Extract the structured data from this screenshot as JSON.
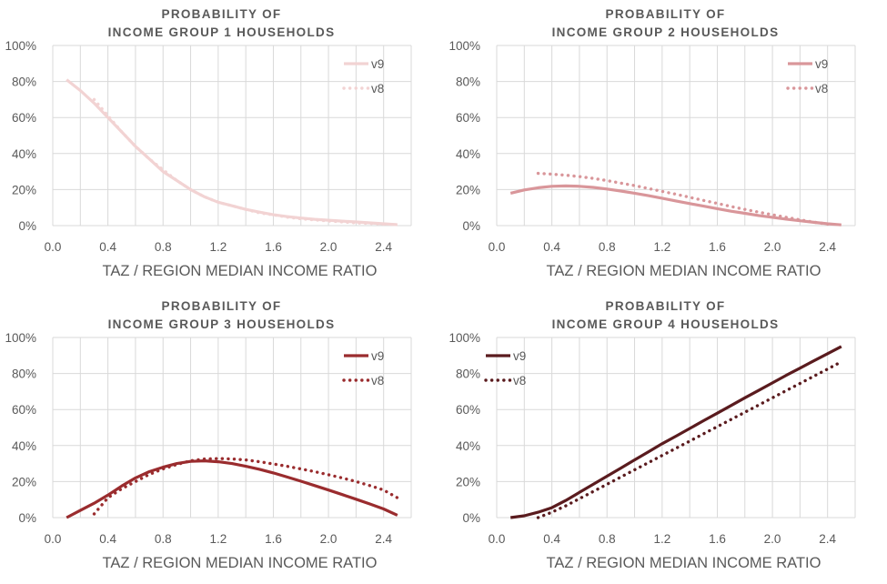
{
  "chart_data": [
    {
      "type": "line",
      "title": [
        "PROBABILITY OF",
        "INCOME GROUP 1 HOUSEHOLDS"
      ],
      "xlabel": "TAZ / REGION MEDIAN INCOME RATIO",
      "ylabel": "",
      "xlim": [
        0,
        2.6
      ],
      "ylim": [
        0,
        100
      ],
      "xticks": [
        "0.0",
        "0.4",
        "0.8",
        "1.2",
        "1.6",
        "2.0",
        "2.4"
      ],
      "yticks": [
        "0%",
        "20%",
        "40%",
        "60%",
        "80%",
        "100%"
      ],
      "grid": true,
      "legend": "top-right",
      "color": "#f2d3d3",
      "series": [
        {
          "name": "v9",
          "style": "solid",
          "x": [
            0.1,
            0.2,
            0.3,
            0.4,
            0.5,
            0.6,
            0.7,
            0.8,
            0.9,
            1.0,
            1.1,
            1.2,
            1.3,
            1.4,
            1.5,
            1.6,
            1.7,
            1.8,
            1.9,
            2.0,
            2.1,
            2.2,
            2.3,
            2.4,
            2.5
          ],
          "y": [
            81,
            75,
            68,
            60,
            52,
            44,
            37,
            30,
            25,
            20,
            16,
            13,
            11,
            9,
            7.5,
            6,
            5,
            4.2,
            3.5,
            3,
            2.5,
            2,
            1.5,
            1,
            0.5
          ]
        },
        {
          "name": "v8",
          "style": "dotted",
          "x": [
            0.3,
            0.4,
            0.5,
            0.6,
            0.7,
            0.8,
            0.9,
            1.0,
            1.1,
            1.2,
            1.3,
            1.4,
            1.5,
            1.6,
            1.7,
            1.8,
            1.9,
            2.0,
            2.1,
            2.2,
            2.3,
            2.4
          ],
          "y": [
            70,
            61,
            52,
            44,
            37,
            31,
            25,
            20,
            16,
            13,
            11,
            9,
            7,
            6,
            4.7,
            3.8,
            3.2,
            2.6,
            2,
            1.5,
            1.2,
            0.8
          ]
        }
      ]
    },
    {
      "type": "line",
      "title": [
        "PROBABILITY OF",
        "INCOME GROUP 2 HOUSEHOLDS"
      ],
      "xlabel": "TAZ / REGION MEDIAN INCOME RATIO",
      "ylabel": "",
      "xlim": [
        0,
        2.6
      ],
      "ylim": [
        0,
        100
      ],
      "xticks": [
        "0.0",
        "0.4",
        "0.8",
        "1.2",
        "1.6",
        "2.0",
        "2.4"
      ],
      "yticks": [
        "0%",
        "20%",
        "40%",
        "60%",
        "80%",
        "100%"
      ],
      "grid": true,
      "legend": "top-right",
      "color": "#d9969a",
      "series": [
        {
          "name": "v9",
          "style": "solid",
          "x": [
            0.1,
            0.2,
            0.3,
            0.4,
            0.5,
            0.6,
            0.7,
            0.8,
            0.9,
            1.0,
            1.1,
            1.2,
            1.3,
            1.4,
            1.5,
            1.6,
            1.7,
            1.8,
            1.9,
            2.0,
            2.1,
            2.2,
            2.3,
            2.4,
            2.5
          ],
          "y": [
            18,
            19.8,
            21,
            21.8,
            22,
            21.8,
            21.2,
            20.3,
            19.2,
            18,
            16.6,
            15.2,
            13.7,
            12.2,
            10.8,
            9.4,
            8,
            6.8,
            5.6,
            4.6,
            3.6,
            2.7,
            1.8,
            1,
            0.4
          ]
        },
        {
          "name": "v8",
          "style": "dotted",
          "x": [
            0.3,
            0.4,
            0.5,
            0.6,
            0.7,
            0.8,
            0.9,
            1.0,
            1.1,
            1.2,
            1.3,
            1.4,
            1.5,
            1.6,
            1.7,
            1.8,
            1.9,
            2.0,
            2.1,
            2.2,
            2.3,
            2.4
          ],
          "y": [
            29,
            28.6,
            28,
            27.2,
            26.2,
            25,
            23.6,
            22.2,
            20.6,
            19,
            17.4,
            15.7,
            14,
            12.3,
            10.6,
            9,
            7.5,
            6,
            4.6,
            3.2,
            1.9,
            0.8
          ]
        }
      ]
    },
    {
      "type": "line",
      "title": [
        "PROBABILITY OF",
        "INCOME GROUP 3 HOUSEHOLDS"
      ],
      "xlabel": "TAZ / REGION MEDIAN INCOME RATIO",
      "ylabel": "",
      "xlim": [
        0,
        2.6
      ],
      "ylim": [
        0,
        100
      ],
      "xticks": [
        "0.0",
        "0.4",
        "0.8",
        "1.2",
        "1.6",
        "2.0",
        "2.4"
      ],
      "yticks": [
        "0%",
        "20%",
        "40%",
        "60%",
        "80%",
        "100%"
      ],
      "grid": true,
      "legend": "top-right",
      "color": "#9a2c2e",
      "series": [
        {
          "name": "v9",
          "style": "solid",
          "x": [
            0.1,
            0.2,
            0.3,
            0.4,
            0.5,
            0.6,
            0.7,
            0.8,
            0.9,
            1.0,
            1.1,
            1.2,
            1.3,
            1.4,
            1.5,
            1.6,
            1.7,
            1.8,
            1.9,
            2.0,
            2.1,
            2.2,
            2.3,
            2.4,
            2.5
          ],
          "y": [
            0,
            4,
            8,
            12.5,
            17.5,
            22,
            25.5,
            28,
            30,
            31.2,
            31.5,
            31,
            30,
            28.5,
            26.8,
            24.8,
            22.5,
            20.2,
            17.8,
            15.3,
            12.8,
            10.2,
            7.6,
            4.8,
            1.3
          ]
        },
        {
          "name": "v8",
          "style": "dotted",
          "x": [
            0.3,
            0.4,
            0.5,
            0.6,
            0.7,
            0.8,
            0.9,
            1.0,
            1.1,
            1.2,
            1.3,
            1.4,
            1.5,
            1.6,
            1.7,
            1.8,
            1.9,
            2.0,
            2.1,
            2.2,
            2.3,
            2.4,
            2.5
          ],
          "y": [
            2,
            11,
            16,
            20,
            24,
            27,
            29.5,
            31.5,
            32.5,
            32.8,
            32.6,
            32,
            31,
            29.8,
            28.5,
            27,
            25.5,
            23.8,
            22,
            20,
            17.8,
            15.3,
            11
          ]
        }
      ]
    },
    {
      "type": "line",
      "title": [
        "PROBABILITY OF",
        "INCOME GROUP 4 HOUSEHOLDS"
      ],
      "xlabel": "TAZ / REGION MEDIAN INCOME RATIO",
      "ylabel": "",
      "xlim": [
        0,
        2.6
      ],
      "ylim": [
        0,
        100
      ],
      "xticks": [
        "0.0",
        "0.4",
        "0.8",
        "1.2",
        "1.6",
        "2.0",
        "2.4"
      ],
      "yticks": [
        "0%",
        "20%",
        "40%",
        "60%",
        "80%",
        "100%"
      ],
      "grid": true,
      "legend": "top-left",
      "color": "#5a1b1e",
      "series": [
        {
          "name": "v9",
          "style": "solid",
          "x": [
            0.1,
            0.2,
            0.3,
            0.4,
            0.5,
            0.6,
            0.7,
            0.8,
            0.9,
            1.0,
            1.1,
            1.2,
            1.3,
            1.4,
            1.5,
            1.6,
            1.7,
            1.8,
            1.9,
            2.0,
            2.1,
            2.2,
            2.3,
            2.4,
            2.5
          ],
          "y": [
            0,
            1,
            3,
            5.5,
            9.5,
            14,
            18.5,
            23,
            27.5,
            32,
            36.5,
            41,
            45.2,
            49.5,
            53.8,
            58,
            62.2,
            66.5,
            70.6,
            74.8,
            79,
            83,
            87,
            91,
            95
          ]
        },
        {
          "name": "v8",
          "style": "dotted",
          "x": [
            0.3,
            0.4,
            0.5,
            0.6,
            0.7,
            0.8,
            0.9,
            1.0,
            1.1,
            1.2,
            1.3,
            1.4,
            1.5,
            1.6,
            1.7,
            1.8,
            1.9,
            2.0,
            2.1,
            2.2,
            2.3,
            2.4,
            2.5
          ],
          "y": [
            0,
            3,
            6.5,
            10.5,
            14.5,
            18.5,
            22.5,
            26.5,
            30.5,
            34.5,
            38.5,
            42.5,
            46.5,
            50.5,
            54.5,
            58.5,
            62.5,
            66.5,
            70.5,
            74.5,
            78.5,
            82.5,
            86.5
          ]
        }
      ]
    }
  ]
}
